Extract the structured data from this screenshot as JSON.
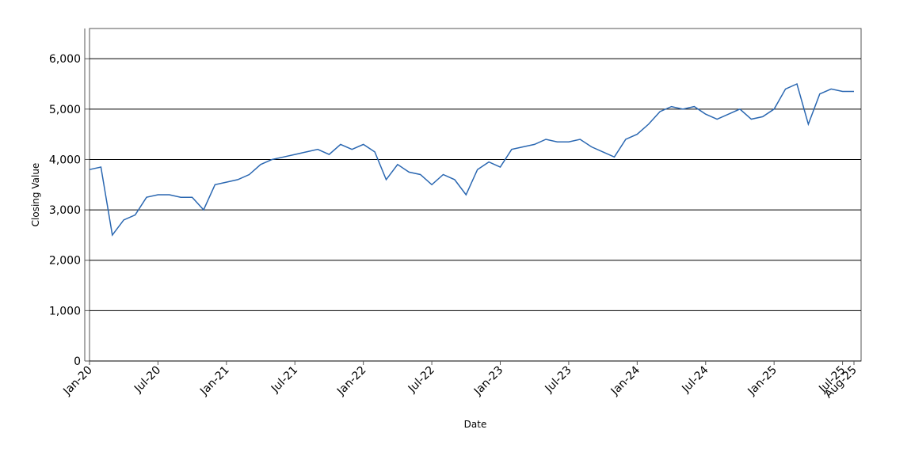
{
  "chart_data": {
    "type": "line",
    "x_label": "Date",
    "y_label": "Closing Value",
    "x": [
      "2020-01",
      "2020-02",
      "2020-03",
      "2020-04",
      "2020-05",
      "2020-06",
      "2020-07",
      "2020-08",
      "2020-09",
      "2020-10",
      "2020-11",
      "2020-12",
      "2021-01",
      "2021-02",
      "2021-03",
      "2021-04",
      "2021-05",
      "2021-06",
      "2021-07",
      "2021-08",
      "2021-09",
      "2021-10",
      "2021-11",
      "2021-12",
      "2022-01",
      "2022-02",
      "2022-03",
      "2022-04",
      "2022-05",
      "2022-06",
      "2022-07",
      "2022-08",
      "2022-09",
      "2022-10",
      "2022-11",
      "2022-12",
      "2023-01",
      "2023-02",
      "2023-03",
      "2023-04",
      "2023-05",
      "2023-06",
      "2023-07",
      "2023-08",
      "2023-09",
      "2023-10",
      "2023-11",
      "2023-12",
      "2024-01",
      "2024-02",
      "2024-03",
      "2024-04",
      "2024-05",
      "2024-06",
      "2024-07",
      "2024-08",
      "2024-09",
      "2024-10",
      "2024-11",
      "2024-12",
      "2025-01",
      "2025-02",
      "2025-03",
      "2025-04",
      "2025-05",
      "2025-06",
      "2025-07",
      "2025-08"
    ],
    "values": [
      3800,
      3850,
      2500,
      2800,
      2900,
      3250,
      3300,
      3300,
      3250,
      3250,
      3000,
      3500,
      3550,
      3600,
      3700,
      3900,
      4000,
      4050,
      4100,
      4150,
      4200,
      4100,
      4300,
      4200,
      4300,
      4150,
      3600,
      3900,
      3750,
      3700,
      3500,
      3700,
      3600,
      3300,
      3800,
      3950,
      3850,
      4200,
      4250,
      4300,
      4400,
      4350,
      4350,
      4400,
      4250,
      4150,
      4050,
      4400,
      4500,
      4700,
      4950,
      5050,
      5000,
      5050,
      4900,
      4800,
      4900,
      5000,
      4800,
      4850,
      5000,
      5400,
      5500,
      4700,
      5300,
      5400,
      5350,
      5350
    ],
    "color": "#2a67b1",
    "xlim": [
      "2020-01",
      "2025-08"
    ],
    "xticks": [
      {
        "value": "2020-01",
        "label": "Jan-20"
      },
      {
        "value": "2020-07",
        "label": "Jul-20"
      },
      {
        "value": "2021-01",
        "label": "Jan-21"
      },
      {
        "value": "2021-07",
        "label": "Jul-21"
      },
      {
        "value": "2022-01",
        "label": "Jan-22"
      },
      {
        "value": "2022-07",
        "label": "Jul-22"
      },
      {
        "value": "2023-01",
        "label": "Jan-23"
      },
      {
        "value": "2023-07",
        "label": "Jul-23"
      },
      {
        "value": "2024-01",
        "label": "Jan-24"
      },
      {
        "value": "2024-07",
        "label": "Jul-24"
      },
      {
        "value": "2025-01",
        "label": "Jan-25"
      },
      {
        "value": "2025-07",
        "label": "Jul-25"
      },
      {
        "value": "2025-08",
        "label": "Aug-25"
      }
    ],
    "ylim": [
      0,
      6600
    ],
    "yticks": [
      0,
      {
        "value": 1000,
        "label": "1,000"
      },
      {
        "value": 2000,
        "label": "2,000"
      },
      {
        "value": 3000,
        "label": "3,000"
      },
      {
        "value": 4000,
        "label": "4,000"
      },
      {
        "value": 5000,
        "label": "5,000"
      },
      {
        "value": 6000,
        "label": "6,000"
      }
    ],
    "grid": true
  }
}
